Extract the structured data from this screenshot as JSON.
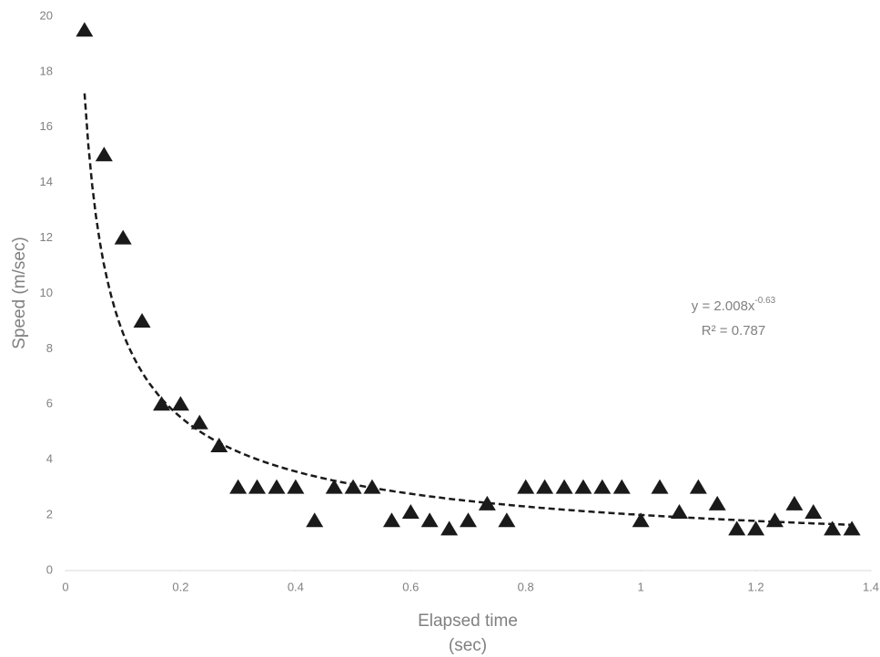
{
  "chart_data": {
    "type": "scatter",
    "xlabel": [
      "Elapsed time",
      "(sec)"
    ],
    "ylabel": "Speed (m/sec)",
    "series": [
      {
        "name": "Speed",
        "color": "#1a1a1a",
        "x": [
          0.033,
          0.067,
          0.1,
          0.133,
          0.167,
          0.2,
          0.233,
          0.267,
          0.3,
          0.333,
          0.367,
          0.4,
          0.433,
          0.467,
          0.5,
          0.533,
          0.567,
          0.6,
          0.633,
          0.667,
          0.7,
          0.733,
          0.767,
          0.8,
          0.833,
          0.867,
          0.9,
          0.933,
          0.967,
          1.0,
          1.033,
          1.067,
          1.1,
          1.133,
          1.167,
          1.2,
          1.233,
          1.267,
          1.3,
          1.333,
          1.367
        ],
        "values": [
          19.5,
          15,
          12,
          9,
          6,
          6,
          5.33,
          4.5,
          3,
          3,
          3,
          3,
          1.8,
          3,
          3,
          3,
          1.8,
          2.1,
          1.8,
          1.5,
          1.8,
          2.4,
          1.8,
          3,
          3,
          3,
          3,
          3,
          3,
          1.8,
          3,
          2.1,
          3,
          2.4,
          1.5,
          1.5,
          1.8,
          2.4,
          2.1,
          1.5,
          1.5
        ]
      }
    ],
    "trendline": {
      "coefficient": 2.008,
      "exponent": -0.63,
      "label": "y = 2.008x",
      "exponent_label": "-0.63",
      "r2_label": "R² = 0.787",
      "color": "#1a1a1a"
    },
    "xlim": [
      0,
      1.4
    ],
    "xticks": [
      0,
      0.2,
      0.4,
      0.6,
      0.8,
      1,
      1.2,
      1.4
    ],
    "ylim": [
      0,
      20
    ],
    "yticks": [
      0,
      2,
      4,
      6,
      8,
      10,
      12,
      14,
      16,
      18,
      20
    ],
    "grid": false
  }
}
